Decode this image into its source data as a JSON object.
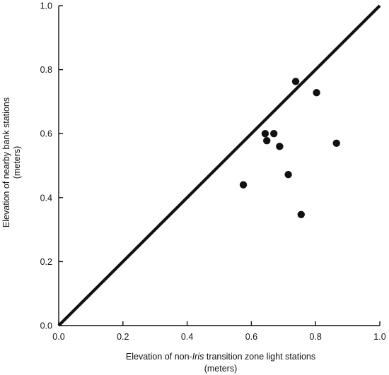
{
  "chart_data": {
    "type": "scatter",
    "title": "",
    "xlabel_parts": [
      "Elevation of non-",
      "Iris",
      " transition zone light stations"
    ],
    "xlabel_line2": "(meters)",
    "ylabel_line1": "Elevation of nearby bank stations",
    "ylabel_line2": "(meters)",
    "xlim": [
      0.0,
      1.0
    ],
    "ylim": [
      0.0,
      1.0
    ],
    "x_ticks": [
      "0.0",
      "0.2",
      "0.4",
      "0.6",
      "0.8",
      "1.0"
    ],
    "y_ticks": [
      "0.0",
      "0.2",
      "0.4",
      "0.6",
      "0.8",
      "1.0"
    ],
    "grid": false,
    "reference_line": {
      "x": [
        0.0,
        1.0
      ],
      "y": [
        0.0,
        1.0
      ]
    },
    "points": [
      {
        "x": 0.575,
        "y": 0.44
      },
      {
        "x": 0.643,
        "y": 0.6
      },
      {
        "x": 0.648,
        "y": 0.578
      },
      {
        "x": 0.67,
        "y": 0.6
      },
      {
        "x": 0.688,
        "y": 0.56
      },
      {
        "x": 0.715,
        "y": 0.472
      },
      {
        "x": 0.738,
        "y": 0.763
      },
      {
        "x": 0.755,
        "y": 0.347
      },
      {
        "x": 0.803,
        "y": 0.728
      },
      {
        "x": 0.865,
        "y": 0.57
      }
    ]
  }
}
